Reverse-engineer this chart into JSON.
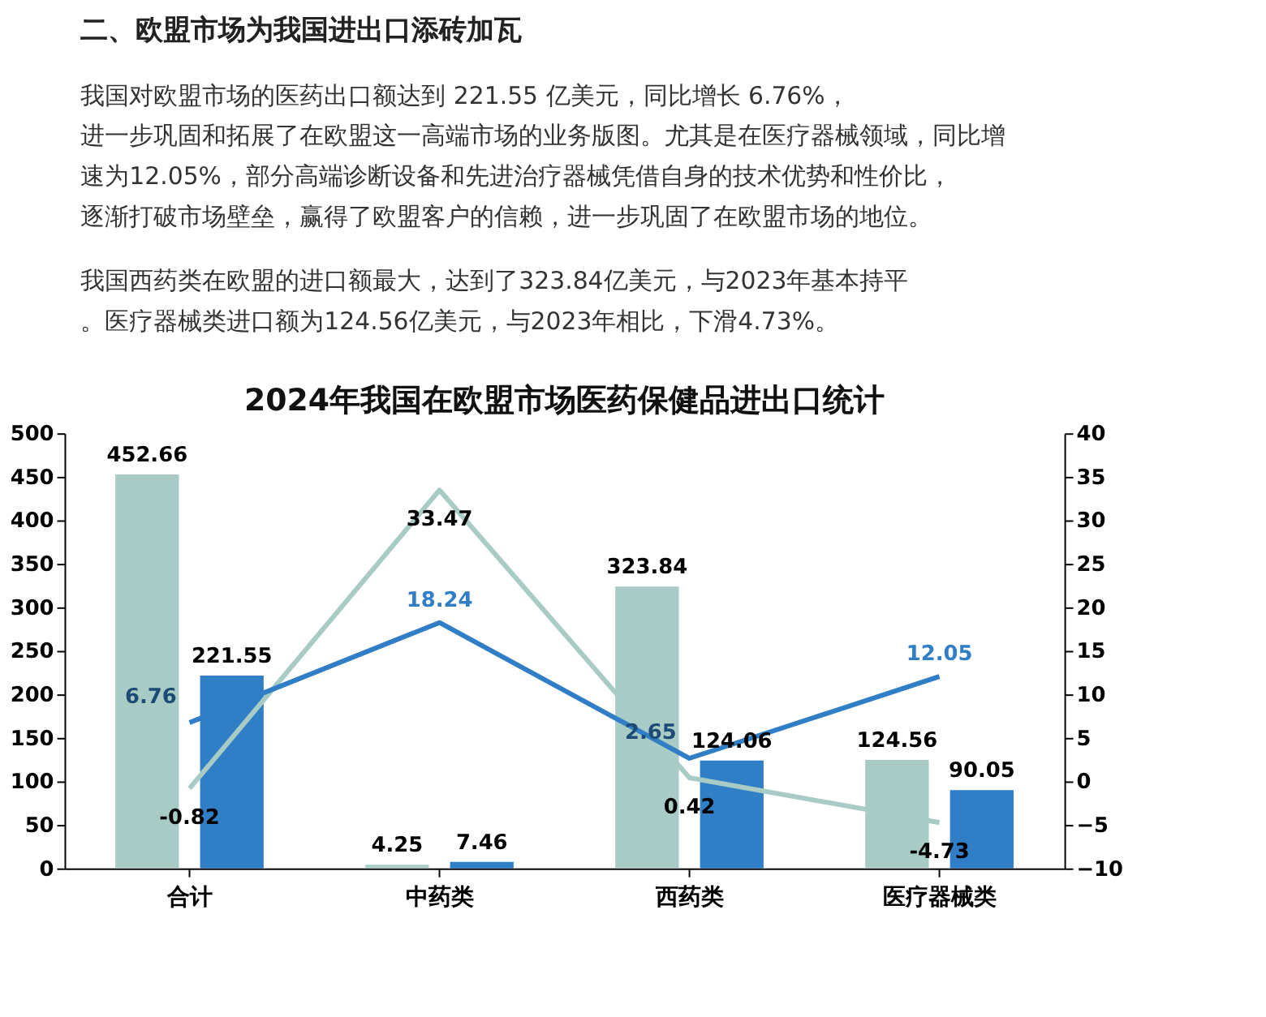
{
  "chart_data": {
    "type": "bar",
    "title": "2024年我国在欧盟市场医药保健品进出口统计",
    "annotations": [
      "二、欧盟市场为我国进出口添砖加瓦",
      "我国对欧盟市场的医药出口额达到 221.55 亿美元，同比增长 6.76%，进一步巩固和拓展了在欧盟这一高端市场的业务版图。尤其是在医疗器械领域，同比增速为12.05%，部分高端诊断设备和先进治疗器械凭借自身的技术优势和性价比，逐渐打破市场壁垒，赢得了欧盟客户的信赖，进一步巩固了在欧盟市场的地位。",
      "我国西药类在欧盟的进口额最大，达到了323.84亿美元，与2023年基本持平。医疗器械类进口额为124.56亿美元，与2023年相比，下滑4.73%。"
    ],
    "categories": [
      "合计",
      "中药类",
      "西药类",
      "医疗器械类"
    ],
    "series": [
      {
        "type": "bar",
        "color": "#a8cbc6",
        "values": [
          452.66,
          4.25,
          323.84,
          124.56
        ]
      },
      {
        "type": "bar",
        "color": "#2f7ec6",
        "values": [
          221.55,
          7.46,
          124.06,
          90.05
        ]
      },
      {
        "type": "line",
        "axis": "y2",
        "color": "#a8cbc6",
        "values": [
          -0.82,
          33.47,
          0.42,
          -4.73
        ]
      },
      {
        "type": "line",
        "axis": "y2",
        "color": "#2f7ec6",
        "values": [
          6.76,
          18.24,
          2.65,
          12.05
        ]
      }
    ],
    "ylim": [
      0,
      500
    ],
    "yticks": [
      0,
      50,
      100,
      150,
      200,
      250,
      300,
      350,
      400,
      450,
      500
    ],
    "y2lim": [
      -10,
      40
    ],
    "y2ticks": [
      -10,
      -5,
      0,
      5,
      10,
      15,
      20,
      25,
      30,
      35,
      40
    ],
    "data_labels": true,
    "grid": false,
    "legend": false
  }
}
